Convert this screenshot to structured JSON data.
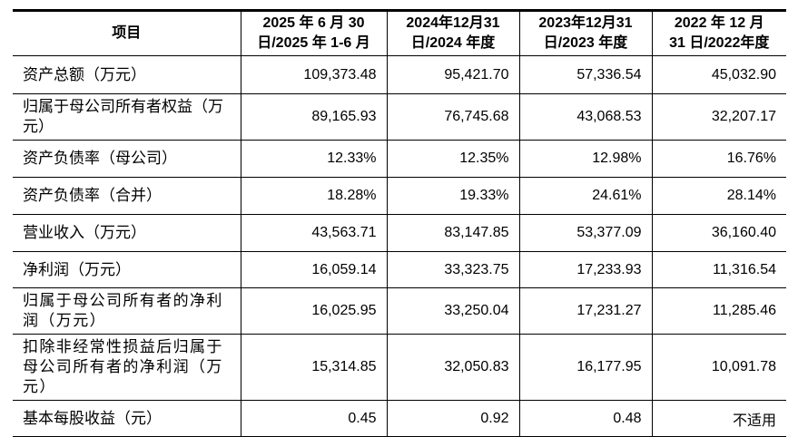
{
  "colors": {
    "background": "#ffffff",
    "text": "#000000",
    "border": "#000000"
  },
  "table": {
    "header": [
      "项目",
      "2025 年 6 月 30\n日/2025 年 1-6 月",
      "2024年12月31\n日/2024 年度",
      "2023年12月31\n日/2023 年度",
      "2022 年 12 月\n31 日/2022年度"
    ],
    "rows": [
      {
        "label": "资产总额（万元）",
        "values": [
          "109,373.48",
          "95,421.70",
          "57,336.54",
          "45,032.90"
        ]
      },
      {
        "label": "归属于母公司所有者权益（万\n元）",
        "values": [
          "89,165.93",
          "76,745.68",
          "43,068.53",
          "32,207.17"
        ]
      },
      {
        "label": "资产负债率（母公司）",
        "values": [
          "12.33%",
          "12.35%",
          "12.98%",
          "16.76%"
        ]
      },
      {
        "label": "资产负债率（合并）",
        "values": [
          "18.28%",
          "19.33%",
          "24.61%",
          "28.14%"
        ]
      },
      {
        "label": "营业收入（万元）",
        "values": [
          "43,563.71",
          "83,147.85",
          "53,377.09",
          "36,160.40"
        ]
      },
      {
        "label": "净利润（万元）",
        "values": [
          "16,059.14",
          "33,323.75",
          "17,233.93",
          "11,316.54"
        ]
      },
      {
        "label": "归属于母公司所有者的净利\n润（万元）",
        "values": [
          "16,025.95",
          "33,250.04",
          "17,231.27",
          "11,285.46"
        ]
      },
      {
        "label": "扣除非经常性损益后归属于\n母公司所有者的净利润（万\n元）",
        "values": [
          "15,314.85",
          "32,050.83",
          "16,177.95",
          "10,091.78"
        ]
      },
      {
        "label": "基本每股收益（元）",
        "values": [
          "0.45",
          "0.92",
          "0.48",
          "不适用"
        ]
      }
    ]
  }
}
